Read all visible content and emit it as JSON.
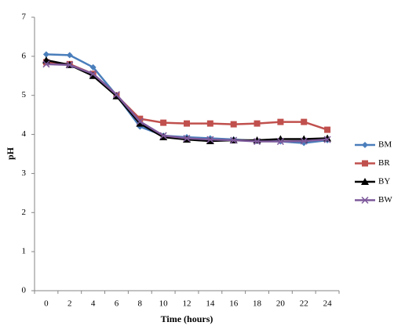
{
  "chart_data": {
    "type": "line",
    "x_label": "Time (hours)",
    "y_label": "pH",
    "categories": [
      "0",
      "2",
      "4",
      "6",
      "8",
      "10",
      "12",
      "14",
      "16",
      "18",
      "20",
      "22",
      "24"
    ],
    "series": [
      {
        "name": "BM",
        "color": "#4a7ebb",
        "marker": "diamond",
        "values": [
          6.05,
          6.03,
          5.72,
          5.0,
          4.2,
          3.97,
          3.93,
          3.9,
          3.87,
          3.83,
          3.82,
          3.78,
          3.85
        ]
      },
      {
        "name": "BR",
        "color": "#c0504d",
        "marker": "square",
        "values": [
          5.85,
          5.8,
          5.55,
          5.0,
          4.4,
          4.3,
          4.28,
          4.28,
          4.26,
          4.28,
          4.32,
          4.32,
          4.12
        ]
      },
      {
        "name": "BY",
        "color": "#000000",
        "marker": "triangle",
        "values": [
          5.9,
          5.78,
          5.5,
          4.98,
          4.28,
          3.93,
          3.87,
          3.83,
          3.85,
          3.85,
          3.88,
          3.88,
          3.9
        ]
      },
      {
        "name": "BW",
        "color": "#7e5a9b",
        "marker": "x",
        "values": [
          5.8,
          5.78,
          5.55,
          5.02,
          4.33,
          3.97,
          3.9,
          3.87,
          3.85,
          3.82,
          3.82,
          3.83,
          3.87
        ]
      }
    ],
    "ylim": [
      0,
      7
    ],
    "yticks": [
      0,
      1,
      2,
      3,
      4,
      5,
      6,
      7
    ],
    "legend": "right"
  }
}
